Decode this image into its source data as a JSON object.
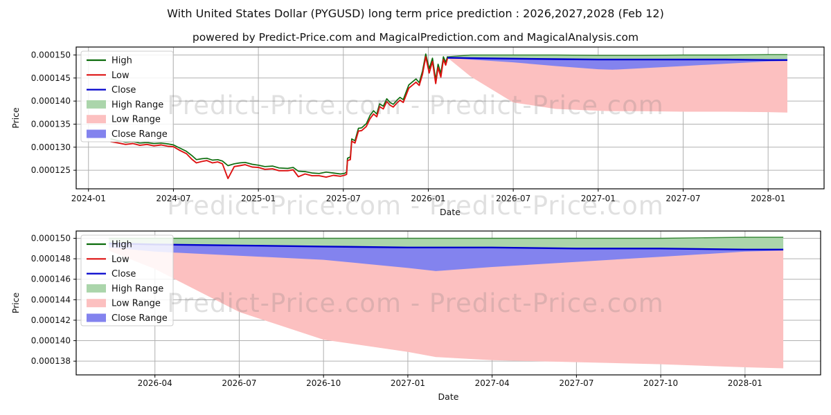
{
  "title": "With United States Dollar (PYGUSD) long term price prediction : 2026,2027,2028 (Feb 12)",
  "subtitle": "powered by Predict-Price.com and MagicalPrediction.com and MagicalAnalysis.com",
  "watermark": {
    "text": "Predict-Price.com - Predict-Price.com"
  },
  "colors": {
    "background": "#ffffff",
    "grid": "#b0b0b0",
    "spine": "#000000",
    "tick_text": "#111111",
    "high_line": "#0b6b0b",
    "low_line": "#dd1111",
    "close_line": "#0000cc",
    "high_range_fill": "#abd5ab",
    "low_range_fill": "#fcc0c0",
    "close_range_fill": "#8383ee",
    "legend_border": "#cccccc",
    "legend_bg": "rgba(255,255,255,0.85)"
  },
  "chart_data": [
    {
      "type": "line",
      "name": "long-term-history-and-forecast",
      "xlabel": "Date",
      "ylabel": "Price",
      "legend": [
        "High",
        "Low",
        "Close",
        "High Range",
        "Low Range",
        "Close Range"
      ],
      "legend_position": "upper left",
      "grid": true,
      "x_ticks": [
        {
          "label": "2024-01",
          "date": "2024-01-01"
        },
        {
          "label": "2024-07",
          "date": "2024-07-01"
        },
        {
          "label": "2025-01",
          "date": "2025-01-01"
        },
        {
          "label": "2025-07",
          "date": "2025-07-01"
        },
        {
          "label": "2026-01",
          "date": "2026-01-01"
        },
        {
          "label": "2026-07",
          "date": "2026-07-01"
        },
        {
          "label": "2027-01",
          "date": "2027-01-01"
        },
        {
          "label": "2027-07",
          "date": "2027-07-01"
        },
        {
          "label": "2028-01",
          "date": "2028-01-01"
        }
      ],
      "y_ticks": [
        {
          "label": "0.000150",
          "value": 0.00015
        },
        {
          "label": "0.000145",
          "value": 0.000145
        },
        {
          "label": "0.000140",
          "value": 0.00014
        },
        {
          "label": "0.000135",
          "value": 0.000135
        },
        {
          "label": "0.000130",
          "value": 0.00013
        },
        {
          "label": "0.000125",
          "value": 0.000125
        }
      ],
      "xlim": [
        "2023-12-05",
        "2028-04-30"
      ],
      "ylim": [
        0.00012097,
        0.00015172
      ],
      "history": {
        "dates": [
          "2024-02-18",
          "2024-03-05",
          "2024-03-20",
          "2024-04-05",
          "2024-04-20",
          "2024-05-05",
          "2024-05-20",
          "2024-06-05",
          "2024-06-20",
          "2024-07-01",
          "2024-07-15",
          "2024-07-29",
          "2024-08-10",
          "2024-08-20",
          "2024-09-01",
          "2024-09-12",
          "2024-09-24",
          "2024-10-05",
          "2024-10-15",
          "2024-10-27",
          "2024-11-10",
          "2024-11-22",
          "2024-12-03",
          "2024-12-18",
          "2025-01-01",
          "2025-01-15",
          "2025-02-01",
          "2025-02-15",
          "2025-03-03",
          "2025-03-15",
          "2025-03-26",
          "2025-04-10",
          "2025-04-25",
          "2025-05-10",
          "2025-05-25",
          "2025-06-10",
          "2025-06-25",
          "2025-07-03",
          "2025-07-08",
          "2025-07-10",
          "2025-07-16",
          "2025-07-19",
          "2025-07-26",
          "2025-08-03",
          "2025-08-10",
          "2025-08-20",
          "2025-08-28",
          "2025-09-05",
          "2025-09-12",
          "2025-09-18",
          "2025-09-26",
          "2025-10-03",
          "2025-10-10",
          "2025-10-17",
          "2025-10-25",
          "2025-11-01",
          "2025-11-08",
          "2025-11-20",
          "2025-12-05",
          "2025-12-12",
          "2025-12-19",
          "2025-12-26",
          "2026-01-03",
          "2026-01-10",
          "2026-01-17",
          "2026-01-22",
          "2026-01-28",
          "2026-02-03",
          "2026-02-08",
          "2026-02-12"
        ],
        "low": [
          0.0001312,
          0.0001309,
          0.0001306,
          0.0001308,
          0.0001304,
          0.0001306,
          0.0001303,
          0.0001305,
          0.0001302,
          0.0001301,
          0.0001293,
          0.0001286,
          0.0001274,
          0.0001266,
          0.0001269,
          0.0001271,
          0.0001266,
          0.0001268,
          0.0001264,
          0.0001232,
          0.0001258,
          0.000126,
          0.0001262,
          0.0001257,
          0.0001256,
          0.0001252,
          0.0001253,
          0.0001249,
          0.0001249,
          0.0001251,
          0.0001236,
          0.0001242,
          0.0001238,
          0.0001238,
          0.0001235,
          0.0001239,
          0.0001237,
          0.0001239,
          0.0001241,
          0.0001271,
          0.0001273,
          0.0001313,
          0.0001309,
          0.0001335,
          0.0001336,
          0.0001345,
          0.0001362,
          0.0001372,
          0.0001366,
          0.0001388,
          0.0001383,
          0.0001399,
          0.0001391,
          0.0001387,
          0.0001396,
          0.0001402,
          0.0001397,
          0.0001428,
          0.0001441,
          0.0001434,
          0.0001458,
          0.0001496,
          0.0001461,
          0.0001486,
          0.0001438,
          0.0001473,
          0.0001452,
          0.000149,
          0.0001478,
          0.0001493
        ],
        "high": [
          0.0001318,
          0.0001314,
          0.0001311,
          0.0001312,
          0.0001309,
          0.000131,
          0.0001308,
          0.0001309,
          0.0001307,
          0.0001305,
          0.0001298,
          0.0001291,
          0.0001282,
          0.0001273,
          0.0001275,
          0.0001276,
          0.0001272,
          0.0001273,
          0.000127,
          0.000126,
          0.0001264,
          0.0001266,
          0.0001267,
          0.0001263,
          0.0001261,
          0.0001258,
          0.0001259,
          0.0001255,
          0.0001254,
          0.0001256,
          0.0001248,
          0.0001247,
          0.0001244,
          0.0001243,
          0.0001246,
          0.0001244,
          0.0001242,
          0.0001243,
          0.0001246,
          0.0001276,
          0.0001279,
          0.0001318,
          0.0001314,
          0.0001341,
          0.0001342,
          0.0001351,
          0.0001369,
          0.0001379,
          0.0001372,
          0.0001394,
          0.0001389,
          0.0001405,
          0.0001397,
          0.0001393,
          0.0001402,
          0.0001408,
          0.0001403,
          0.0001435,
          0.0001448,
          0.000144,
          0.0001465,
          0.0001502,
          0.000147,
          0.0001493,
          0.0001446,
          0.000148,
          0.000146,
          0.0001496,
          0.0001484,
          0.0001497
        ]
      },
      "forecast": {
        "dates": [
          "2026-02-12",
          "2026-04-01",
          "2026-07-01",
          "2026-10-01",
          "2027-01-01",
          "2027-02-01",
          "2027-04-01",
          "2027-07-01",
          "2027-10-01",
          "2028-01-01",
          "2028-02-12"
        ],
        "high_top": [
          0.0001496,
          0.00015,
          0.00015,
          0.00015,
          0.0001499,
          0.0001499,
          0.0001499,
          0.00015,
          0.00015,
          0.0001501,
          0.0001501
        ],
        "close": [
          0.0001494,
          0.0001493,
          0.0001492,
          0.0001491,
          0.000149,
          0.000149,
          0.000149,
          0.000149,
          0.000149,
          0.0001489,
          0.0001489
        ],
        "close_bottom": [
          0.0001494,
          0.000149,
          0.0001484,
          0.0001476,
          0.0001469,
          0.0001468,
          0.0001471,
          0.0001476,
          0.0001481,
          0.0001486,
          0.0001487
        ],
        "low_bottom": [
          0.0001494,
          0.0001453,
          0.0001397,
          0.0001383,
          0.0001379,
          0.0001378,
          0.0001378,
          0.0001377,
          0.0001377,
          0.0001376,
          0.0001375
        ]
      }
    },
    {
      "type": "line",
      "name": "forecast-detail",
      "xlabel": "Date",
      "ylabel": "Price",
      "legend": [
        "High",
        "Low",
        "Close",
        "High Range",
        "Low Range",
        "Close Range"
      ],
      "legend_position": "upper left",
      "grid": true,
      "x_ticks": [
        {
          "label": "2026-04",
          "date": "2026-04-01"
        },
        {
          "label": "2026-07",
          "date": "2026-07-01"
        },
        {
          "label": "2026-10",
          "date": "2026-10-01"
        },
        {
          "label": "2027-01",
          "date": "2027-01-01"
        },
        {
          "label": "2027-04",
          "date": "2027-04-01"
        },
        {
          "label": "2027-07",
          "date": "2027-07-01"
        },
        {
          "label": "2027-10",
          "date": "2027-10-01"
        },
        {
          "label": "2028-01",
          "date": "2028-01-01"
        }
      ],
      "y_ticks": [
        {
          "label": "0.000150",
          "value": 0.00015
        },
        {
          "label": "0.000148",
          "value": 0.000148
        },
        {
          "label": "0.000146",
          "value": 0.000146
        },
        {
          "label": "0.000144",
          "value": 0.000144
        },
        {
          "label": "0.000142",
          "value": 0.000142
        },
        {
          "label": "0.000140",
          "value": 0.00014
        },
        {
          "label": "0.000138",
          "value": 0.000138
        }
      ],
      "xlim": [
        "2026-01-07",
        "2028-03-22"
      ],
      "ylim": [
        0.00013666,
        0.00015071
      ],
      "history": null,
      "forecast": {
        "dates": [
          "2026-02-12",
          "2026-04-01",
          "2026-07-01",
          "2026-10-01",
          "2027-01-01",
          "2027-02-01",
          "2027-04-01",
          "2027-07-01",
          "2027-10-01",
          "2028-01-01",
          "2028-02-12"
        ],
        "high_top": [
          0.00015,
          0.00015,
          0.00015,
          0.00015,
          0.00015,
          0.00015,
          0.00015,
          0.00015,
          0.00015,
          0.0001501,
          0.0001501
        ],
        "close": [
          0.0001495,
          0.0001494,
          0.0001493,
          0.0001492,
          0.0001491,
          0.0001491,
          0.0001491,
          0.000149,
          0.000149,
          0.0001489,
          0.0001489
        ],
        "close_bottom": [
          0.0001491,
          0.0001487,
          0.0001483,
          0.0001479,
          0.0001471,
          0.0001468,
          0.0001472,
          0.0001477,
          0.0001482,
          0.0001487,
          0.0001488
        ],
        "low_bottom": [
          0.0001488,
          0.000147,
          0.0001428,
          0.0001401,
          0.0001389,
          0.0001384,
          0.0001381,
          0.0001379,
          0.0001377,
          0.0001374,
          0.0001373
        ]
      }
    }
  ]
}
